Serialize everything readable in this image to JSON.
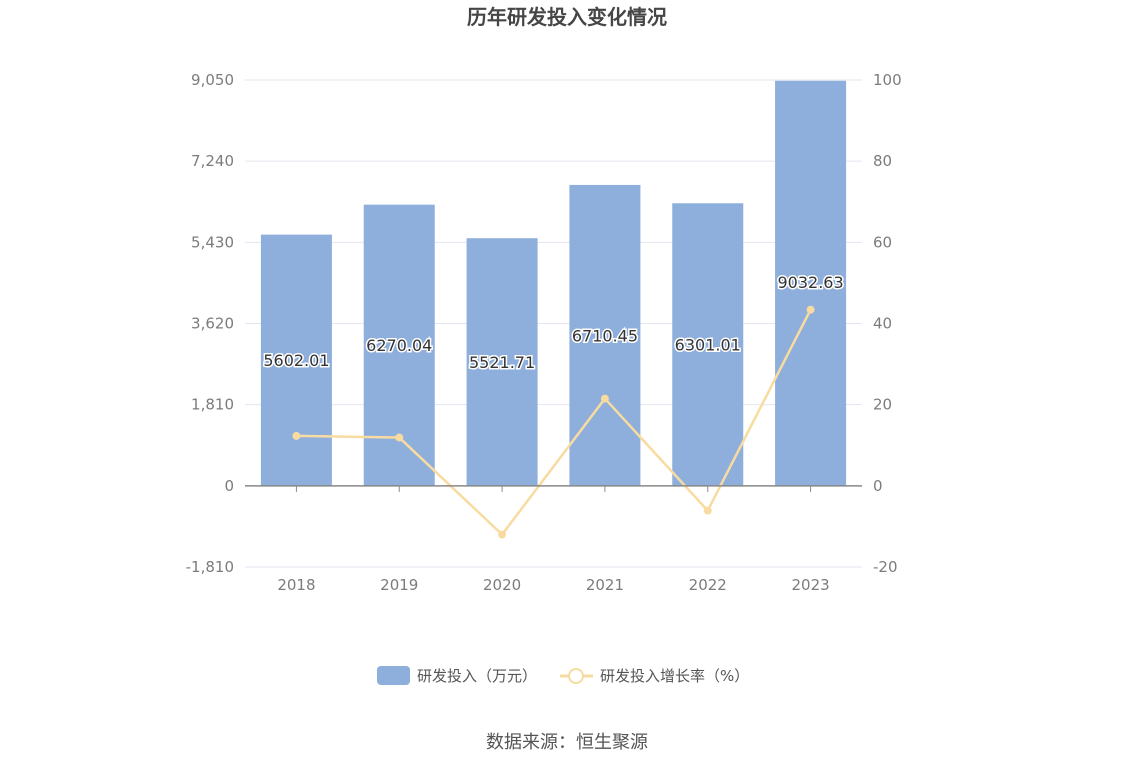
{
  "chart_data": {
    "type": "bar",
    "title": "历年研发投入变化情况",
    "categories": [
      "2018",
      "2019",
      "2020",
      "2021",
      "2022",
      "2023"
    ],
    "series": [
      {
        "name": "研发投入（万元）",
        "type": "bar",
        "axis": "left",
        "values": [
          5602.01,
          6270.04,
          5521.71,
          6710.45,
          6301.01,
          9032.63
        ],
        "labels": [
          "5602.01",
          "6270.04",
          "5521.71",
          "6710.45",
          "6301.01",
          "9032.63"
        ]
      },
      {
        "name": "研发投入增长率（%）",
        "type": "line",
        "axis": "right",
        "values": [
          12.3,
          11.9,
          -12.0,
          21.5,
          -6.1,
          43.4
        ]
      }
    ],
    "y_left": {
      "min": -1810,
      "max": 9050,
      "ticks": [
        "-1,810",
        "0",
        "1,810",
        "3,620",
        "5,430",
        "7,240",
        "9,050"
      ]
    },
    "y_right": {
      "min": -20,
      "max": 100,
      "ticks": [
        "-20",
        "0",
        "20",
        "40",
        "60",
        "80",
        "100"
      ]
    },
    "grid": true,
    "legend_position": "bottom"
  },
  "colors": {
    "bar": "#8eaedb",
    "line": "#f8dba0",
    "grid": "#e3e6f1",
    "axis": "#888888"
  },
  "footer": {
    "source": "数据来源：恒生聚源"
  }
}
